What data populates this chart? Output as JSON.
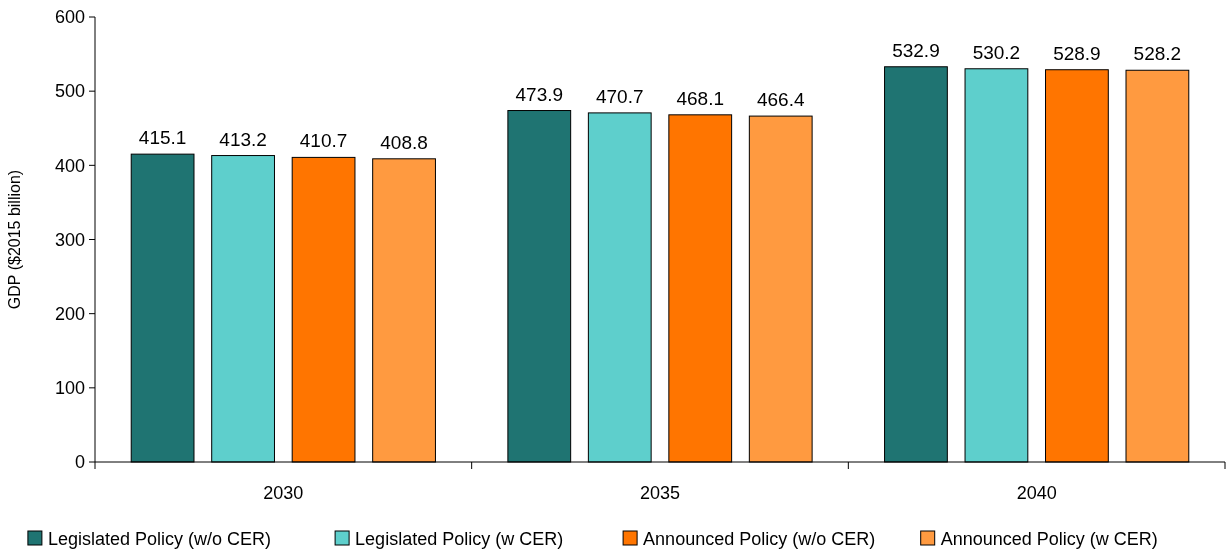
{
  "chart_data": {
    "type": "bar",
    "ylabel": "GDP ($2015 billion)",
    "categories": [
      "2030",
      "2035",
      "2040"
    ],
    "series": [
      {
        "name": "Legislated Policy (w/o CER)",
        "color": "#1f7472",
        "values": [
          415.1,
          473.9,
          532.9
        ]
      },
      {
        "name": "Legislated Policy (w CER)",
        "color": "#5ecfcc",
        "values": [
          413.2,
          470.7,
          530.2
        ]
      },
      {
        "name": "Announced Policy (w/o CER)",
        "color": "#ff7500",
        "values": [
          410.7,
          468.1,
          528.9
        ]
      },
      {
        "name": "Announced Policy (w CER)",
        "color": "#ff9a40",
        "values": [
          408.8,
          466.4,
          528.2
        ]
      }
    ],
    "ylim": [
      0,
      600
    ],
    "yticks": [
      0,
      100,
      200,
      300,
      400,
      500,
      600
    ],
    "grid": false,
    "legend": "bottom",
    "data_labels": true
  }
}
